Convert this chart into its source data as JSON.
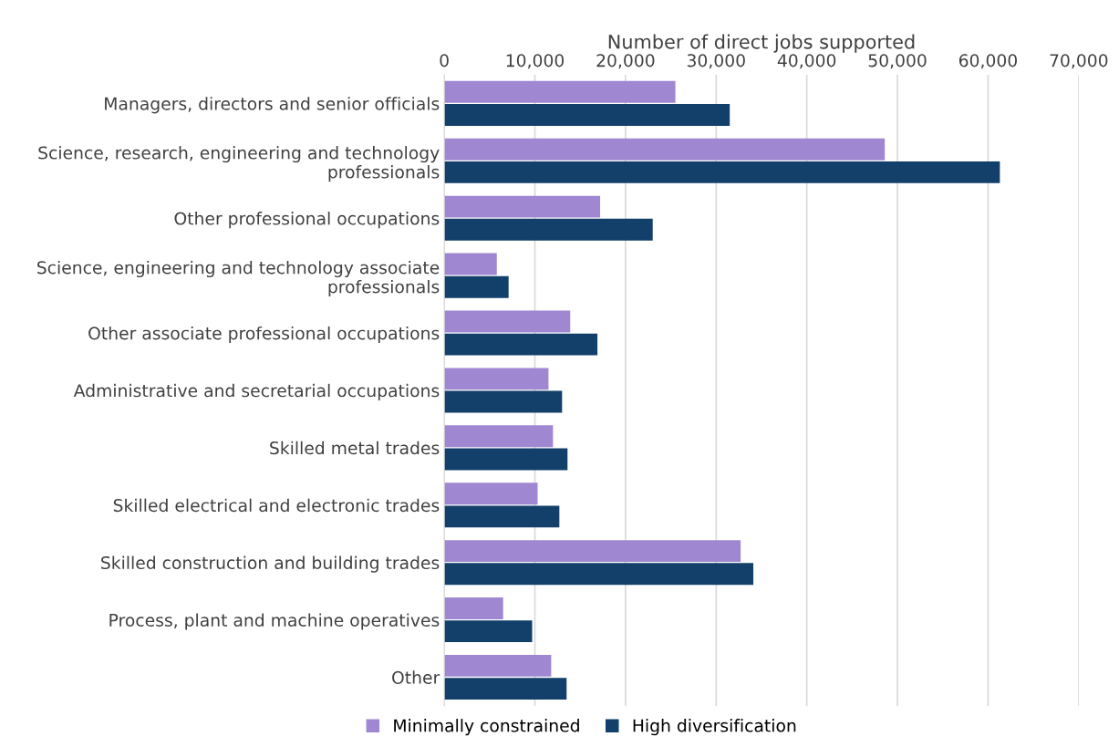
{
  "chart_data": {
    "type": "bar",
    "orientation": "horizontal",
    "xlabel": "Number of direct jobs supported",
    "categories": [
      "Managers, directors and senior officials",
      "Science, research, engineering and technology\nprofessionals",
      "Other professional occupations",
      "Science, engineering and technology associate\nprofessionals",
      "Other associate professional occupations",
      "Administrative and secretarial occupations",
      "Skilled metal trades",
      "Skilled electrical and electronic trades",
      "Skilled construction and building trades",
      "Process, plant and machine operatives",
      "Other"
    ],
    "series": [
      {
        "name": "Minimally constrained",
        "color": "#a087d2",
        "values": [
          25500,
          48600,
          17200,
          5800,
          13900,
          11500,
          12000,
          10300,
          32700,
          6500,
          11800
        ]
      },
      {
        "name": "High diversification",
        "color": "#12406a",
        "values": [
          31500,
          61300,
          23000,
          7100,
          16900,
          13000,
          13600,
          12700,
          34100,
          9700,
          13500
        ]
      }
    ],
    "xlim": [
      0,
      70000
    ],
    "xticks": [
      0,
      {
        "value": 10000,
        "label": "10,000"
      },
      {
        "value": 20000,
        "label": "20,000"
      },
      {
        "value": 30000,
        "label": "30,000"
      },
      {
        "value": 40000,
        "label": "40,000"
      },
      {
        "value": 50000,
        "label": "50,000"
      },
      {
        "value": 60000,
        "label": "60,000"
      },
      {
        "value": 70000,
        "label": "70,000"
      }
    ],
    "grid": "x",
    "legend": "bottom"
  }
}
